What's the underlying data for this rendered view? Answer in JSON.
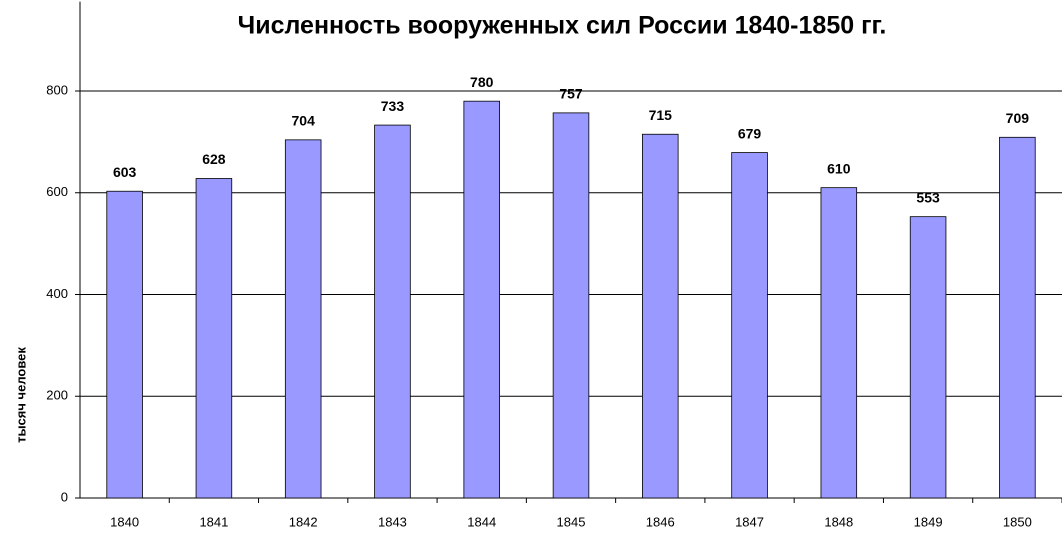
{
  "chart_data": {
    "type": "bar",
    "title": "Численность вооруженных сил России 1840-1850 гг.",
    "y_label": "тысяч человек",
    "categories": [
      "1840",
      "1841",
      "1842",
      "1843",
      "1844",
      "1845",
      "1846",
      "1847",
      "1848",
      "1849",
      "1850"
    ],
    "values": [
      603,
      628,
      704,
      733,
      780,
      757,
      715,
      679,
      610,
      553,
      709
    ],
    "color": "#9999ff",
    "ylim": [
      0,
      960
    ],
    "yticks": [
      0,
      200,
      400,
      600,
      800
    ],
    "grid": true
  }
}
